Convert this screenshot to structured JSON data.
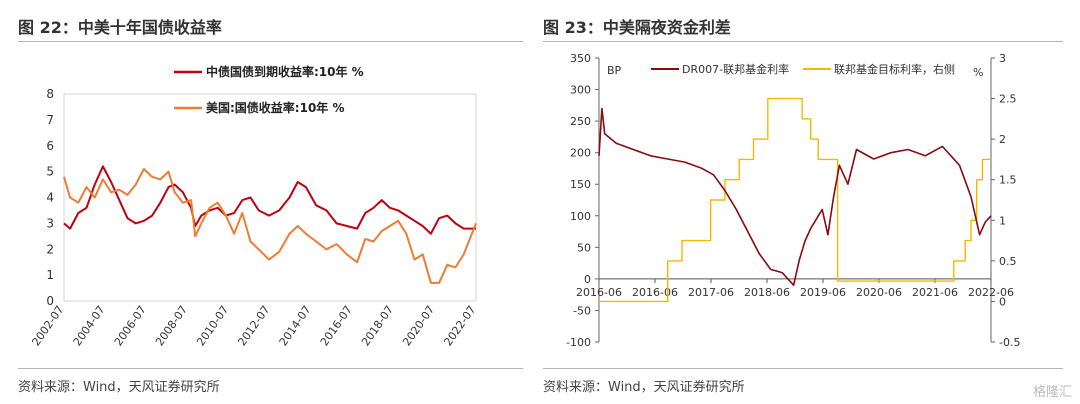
{
  "chart_data": [
    {
      "type": "line",
      "title": "图 22：中美十年国债收益率",
      "source": "资料来源：Wind，天风证券研究所",
      "xlabel": "",
      "ylabel": "",
      "x_ticks": [
        "2002-07",
        "2004-07",
        "2006-07",
        "2008-07",
        "2010-07",
        "2012-07",
        "2014-07",
        "2016-07",
        "2018-07",
        "2020-07",
        "2022-07"
      ],
      "y_ticks": [
        0,
        1,
        2,
        3,
        4,
        5,
        6,
        7,
        8
      ],
      "ylim": [
        0,
        8
      ],
      "xlim": [
        2002.5,
        2022.6
      ],
      "legend_position": "top-right",
      "series": [
        {
          "name": "中债国债到期收益率:10年 %",
          "color": "#c0000f",
          "x": [
            2002.5,
            2002.8,
            2003.2,
            2003.6,
            2004.0,
            2004.4,
            2004.8,
            2005.2,
            2005.6,
            2006.0,
            2006.4,
            2006.8,
            2007.2,
            2007.6,
            2007.9,
            2008.3,
            2008.7,
            2008.9,
            2009.2,
            2009.6,
            2010.0,
            2010.4,
            2010.8,
            2011.2,
            2011.6,
            2012.0,
            2012.5,
            2013.0,
            2013.5,
            2013.9,
            2014.3,
            2014.8,
            2015.3,
            2015.8,
            2016.3,
            2016.8,
            2017.2,
            2017.6,
            2018.0,
            2018.4,
            2018.8,
            2019.2,
            2019.6,
            2020.0,
            2020.4,
            2020.8,
            2021.2,
            2021.6,
            2022.0,
            2022.6
          ],
          "y": [
            3.0,
            2.8,
            3.4,
            3.6,
            4.5,
            5.2,
            4.6,
            3.9,
            3.2,
            3.0,
            3.1,
            3.3,
            3.8,
            4.4,
            4.5,
            4.2,
            3.6,
            2.9,
            3.3,
            3.5,
            3.6,
            3.3,
            3.4,
            3.9,
            4.0,
            3.5,
            3.3,
            3.5,
            4.0,
            4.6,
            4.4,
            3.7,
            3.5,
            3.0,
            2.9,
            2.8,
            3.4,
            3.6,
            3.9,
            3.6,
            3.5,
            3.3,
            3.1,
            2.9,
            2.6,
            3.2,
            3.3,
            3.0,
            2.8,
            2.8
          ]
        },
        {
          "name": "美国:国债收益率:10年 %",
          "color": "#ed7d31",
          "x": [
            2002.5,
            2002.8,
            2003.2,
            2003.6,
            2004.0,
            2004.4,
            2004.8,
            2005.2,
            2005.6,
            2006.0,
            2006.4,
            2006.8,
            2007.2,
            2007.6,
            2007.9,
            2008.3,
            2008.7,
            2008.9,
            2009.2,
            2009.6,
            2010.0,
            2010.4,
            2010.8,
            2011.2,
            2011.6,
            2012.0,
            2012.5,
            2013.0,
            2013.5,
            2013.9,
            2014.3,
            2014.8,
            2015.3,
            2015.8,
            2016.3,
            2016.8,
            2017.2,
            2017.6,
            2018.0,
            2018.4,
            2018.8,
            2019.2,
            2019.6,
            2020.0,
            2020.4,
            2020.8,
            2021.2,
            2021.6,
            2022.0,
            2022.6
          ],
          "y": [
            4.8,
            4.0,
            3.8,
            4.4,
            4.0,
            4.7,
            4.2,
            4.3,
            4.1,
            4.5,
            5.1,
            4.8,
            4.7,
            5.0,
            4.2,
            3.8,
            3.9,
            2.5,
            3.0,
            3.6,
            3.8,
            3.3,
            2.6,
            3.4,
            2.3,
            2.0,
            1.6,
            1.9,
            2.6,
            2.9,
            2.6,
            2.3,
            2.0,
            2.2,
            1.8,
            1.5,
            2.4,
            2.3,
            2.7,
            2.9,
            3.1,
            2.6,
            1.6,
            1.8,
            0.7,
            0.7,
            1.4,
            1.3,
            1.8,
            3.0
          ]
        }
      ]
    },
    {
      "type": "line",
      "title": "图 23：中美隔夜资金利差",
      "source": "资料来源：Wind，天风证券研究所",
      "y_left_unit": "BP",
      "y_right_unit": "%",
      "x_ticks": [
        "2016-06",
        "2016-06",
        "2017-06",
        "2018-06",
        "2019-06",
        "2020-06",
        "2021-06",
        "2022-06"
      ],
      "y_left_ticks": [
        -100,
        -50,
        0,
        50,
        100,
        150,
        200,
        250,
        300,
        350
      ],
      "y_right_ticks": [
        -0.5,
        0,
        0.5,
        1,
        1.5,
        2,
        2.5,
        3
      ],
      "ylim_left": [
        -100,
        350
      ],
      "ylim_right": [
        -0.5,
        3
      ],
      "xlim": [
        2016.0,
        2022.85
      ],
      "legend_position": "top",
      "series": [
        {
          "name": "DR007-联邦基金利率",
          "axis": "left",
          "color": "#8b0a10",
          "x": [
            2016.0,
            2016.05,
            2016.1,
            2016.3,
            2016.6,
            2016.9,
            2017.2,
            2017.5,
            2017.8,
            2018.0,
            2018.2,
            2018.4,
            2018.6,
            2018.8,
            2019.0,
            2019.2,
            2019.4,
            2019.5,
            2019.6,
            2019.7,
            2019.9,
            2020.0,
            2020.1,
            2020.2,
            2020.35,
            2020.5,
            2020.8,
            2021.1,
            2021.4,
            2021.7,
            2022.0,
            2022.3,
            2022.5,
            2022.65,
            2022.75,
            2022.85
          ],
          "y": [
            195,
            270,
            230,
            215,
            205,
            195,
            190,
            185,
            175,
            165,
            140,
            110,
            75,
            40,
            15,
            10,
            -10,
            30,
            60,
            80,
            110,
            70,
            130,
            180,
            150,
            205,
            190,
            200,
            205,
            195,
            210,
            180,
            130,
            70,
            90,
            100
          ]
        },
        {
          "name": "联邦基金目标利率，右侧",
          "axis": "right",
          "color": "#f5b800",
          "x": [
            2016.0,
            2016.75,
            2016.75,
            2017.2,
            2017.2,
            2017.45,
            2017.45,
            2017.95,
            2017.95,
            2018.2,
            2018.2,
            2018.45,
            2018.45,
            2018.7,
            2018.7,
            2018.95,
            2018.95,
            2019.55,
            2019.55,
            2019.7,
            2019.7,
            2019.83,
            2019.83,
            2020.17,
            2020.17,
            2022.2,
            2022.2,
            2022.4,
            2022.4,
            2022.5,
            2022.5,
            2022.6,
            2022.6,
            2022.7,
            2022.7,
            2022.85
          ],
          "y": [
            0.0,
            0.0,
            0.0,
            0.0,
            0.5,
            0.5,
            0.75,
            0.75,
            1.25,
            1.25,
            1.5,
            1.5,
            1.75,
            1.75,
            2.0,
            2.0,
            2.5,
            2.5,
            2.25,
            2.25,
            2.0,
            2.0,
            1.75,
            1.75,
            0.25,
            0.25,
            0.5,
            0.5,
            0.75,
            0.75,
            1.0,
            1.0,
            1.5,
            1.5,
            1.75,
            1.75
          ]
        }
      ]
    }
  ],
  "watermark": "格隆汇"
}
